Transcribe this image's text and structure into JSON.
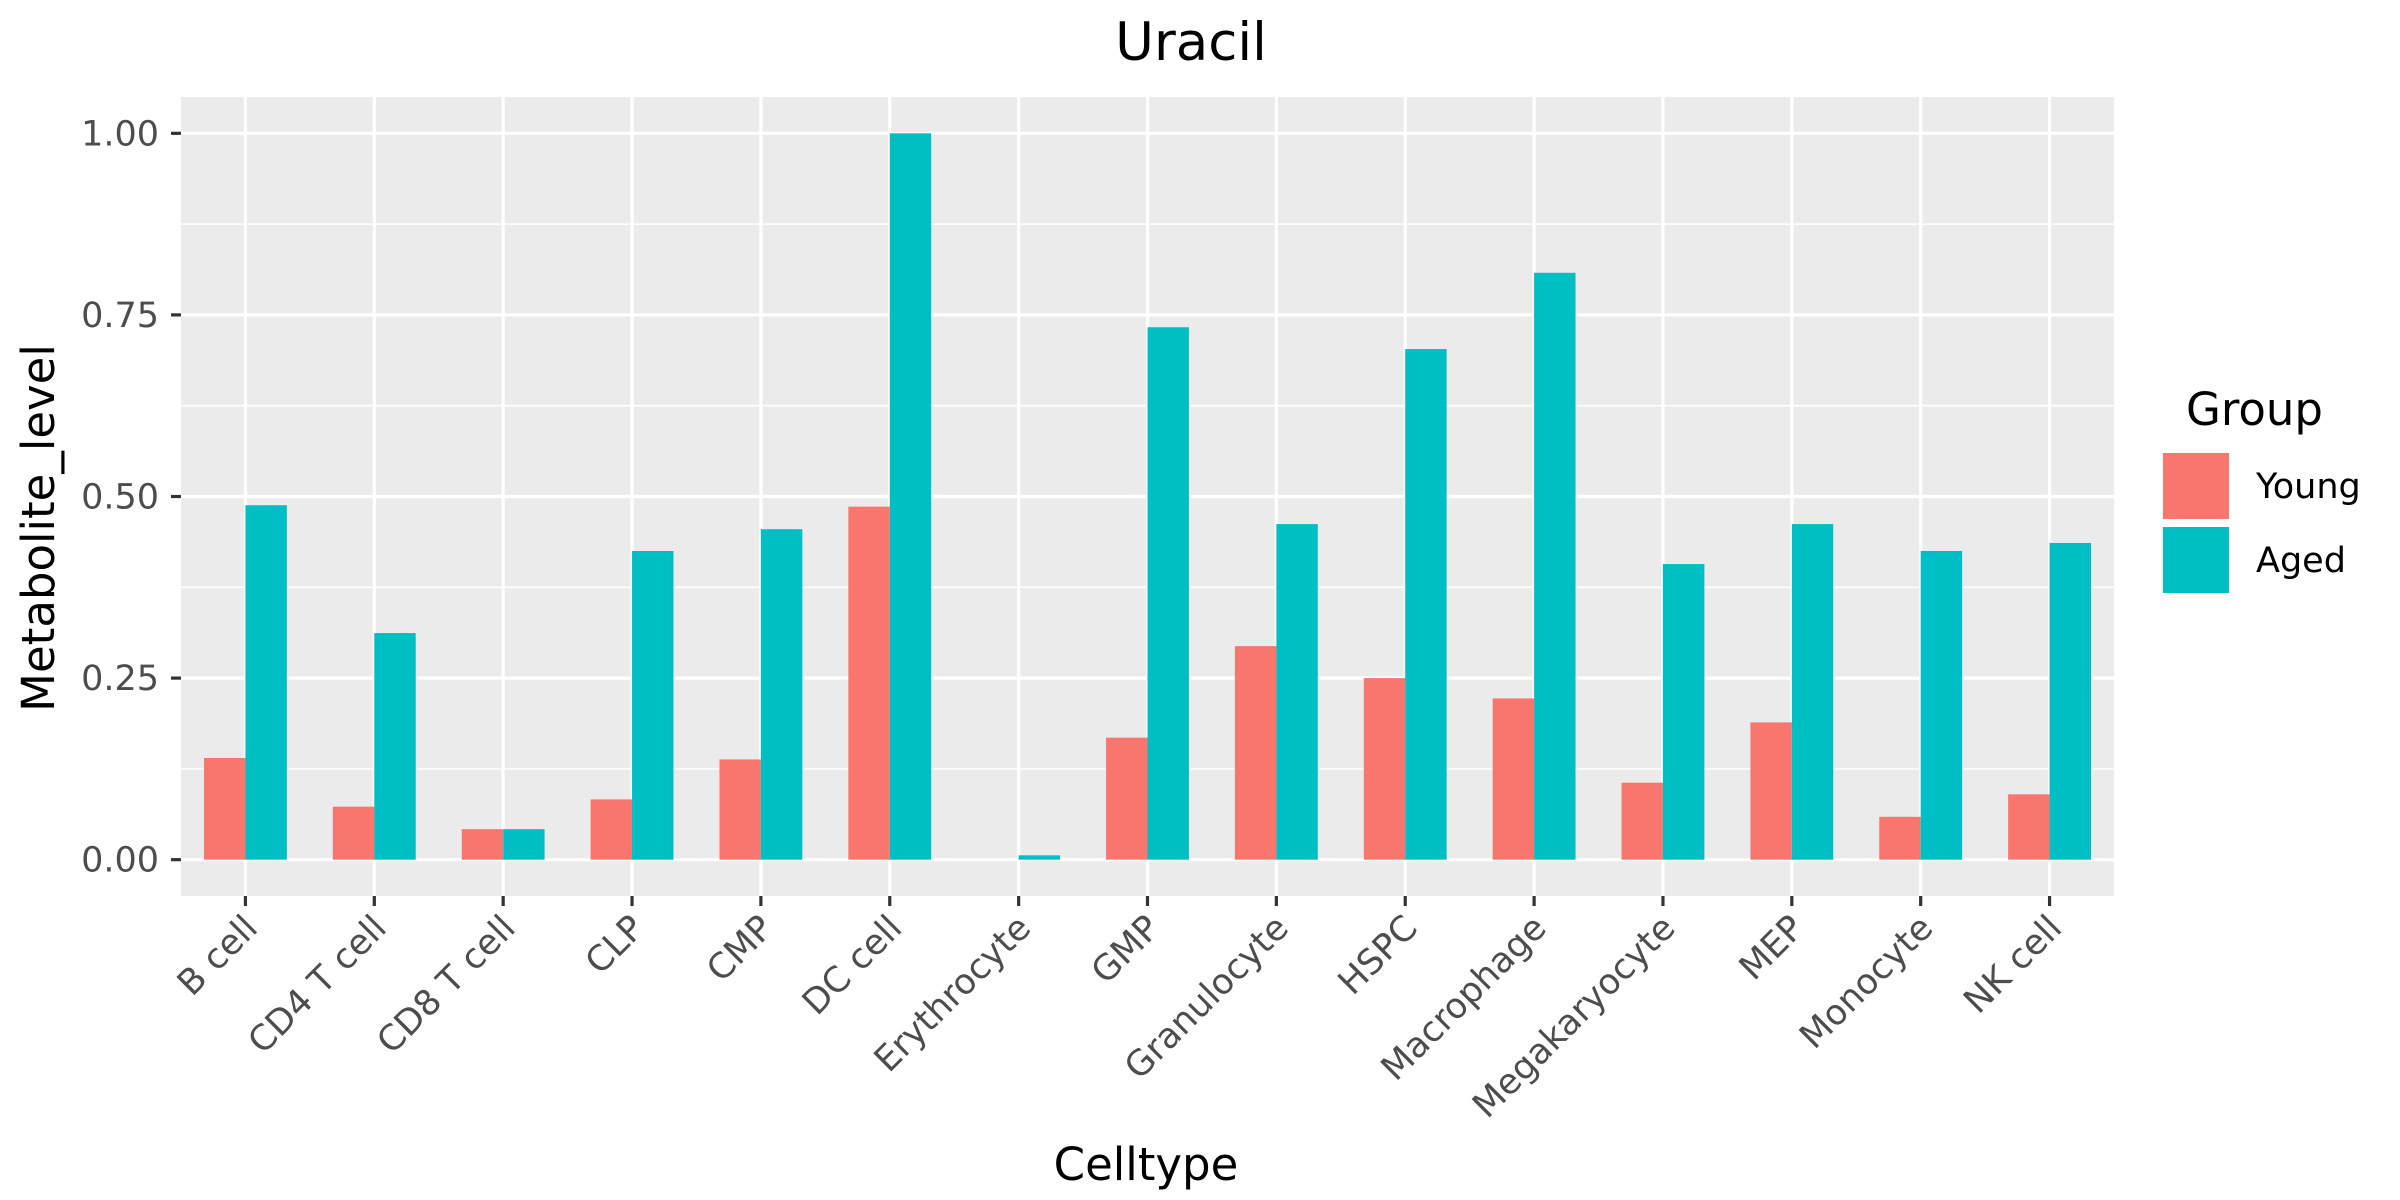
{
  "chart_data": {
    "type": "bar",
    "title": "Uracil",
    "xlabel": "Celltype",
    "ylabel": "Metabolite_level",
    "categories": [
      "B cell",
      "CD4 T cell",
      "CD8 T cell",
      "CLP",
      "CMP",
      "DC cell",
      "Erythrocyte",
      "GMP",
      "Granulocyte",
      "HSPC",
      "Macrophage",
      "Megakaryocyte",
      "MEP",
      "Monocyte",
      "NK cell"
    ],
    "series": [
      {
        "name": "Young",
        "color": "#F8766D",
        "values": [
          0.14,
          0.073,
          0.042,
          0.083,
          0.138,
          0.486,
          0.0,
          0.168,
          0.294,
          0.25,
          0.222,
          0.106,
          0.189,
          0.059,
          0.09
        ]
      },
      {
        "name": "Aged",
        "color": "#00BFC4",
        "values": [
          0.488,
          0.312,
          0.042,
          0.425,
          0.455,
          1.0,
          0.006,
          0.733,
          0.462,
          0.703,
          0.808,
          0.407,
          0.462,
          0.425,
          0.436
        ]
      }
    ],
    "ylim": [
      -0.05,
      1.05
    ],
    "yticks": [
      0,
      0.25,
      0.5,
      0.75,
      1.0
    ],
    "ytick_labels": [
      "0.00",
      "0.25",
      "0.50",
      "0.75",
      "1.00"
    ],
    "legend": {
      "title": "Group",
      "position": "right"
    },
    "grid": true,
    "panel_background": "#EBEBEB",
    "grid_color": "#FFFFFF"
  }
}
